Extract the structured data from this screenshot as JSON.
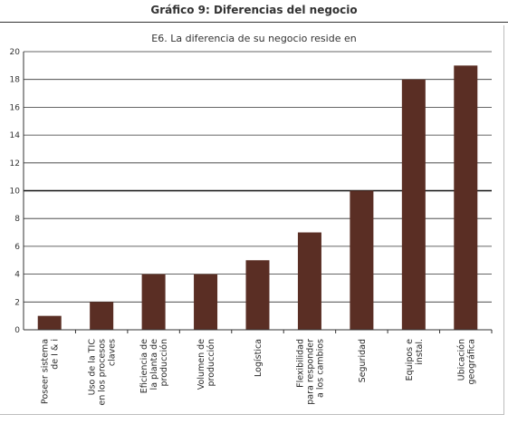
{
  "header": {
    "title": "Gráfico 9: Diferencias del negocio"
  },
  "chart_data": {
    "type": "bar",
    "title": "E6. La diferencia de su negocio reside en",
    "xlabel": "",
    "ylabel": "",
    "ylim": [
      0,
      20
    ],
    "yticks": [
      0,
      2,
      4,
      6,
      8,
      10,
      12,
      14,
      16,
      18,
      20
    ],
    "grid": true,
    "categories": [
      [
        "Poseer sistema",
        "de I & i"
      ],
      [
        "Uso de la TIC",
        "en los procesos",
        "claves"
      ],
      [
        "Eficiencia de",
        "la planta de",
        "producción"
      ],
      [
        "Volumen de",
        "producción"
      ],
      [
        "Logística"
      ],
      [
        "Flexibilidad",
        "para responder",
        "a los cambios"
      ],
      [
        "Seguridad"
      ],
      [
        "Equipos e",
        "instal."
      ],
      [
        "Ubicación",
        "geográfica"
      ]
    ],
    "values": [
      1,
      2,
      4,
      4,
      5,
      7,
      10,
      18,
      19
    ],
    "bar_color": "#5a2e24"
  }
}
